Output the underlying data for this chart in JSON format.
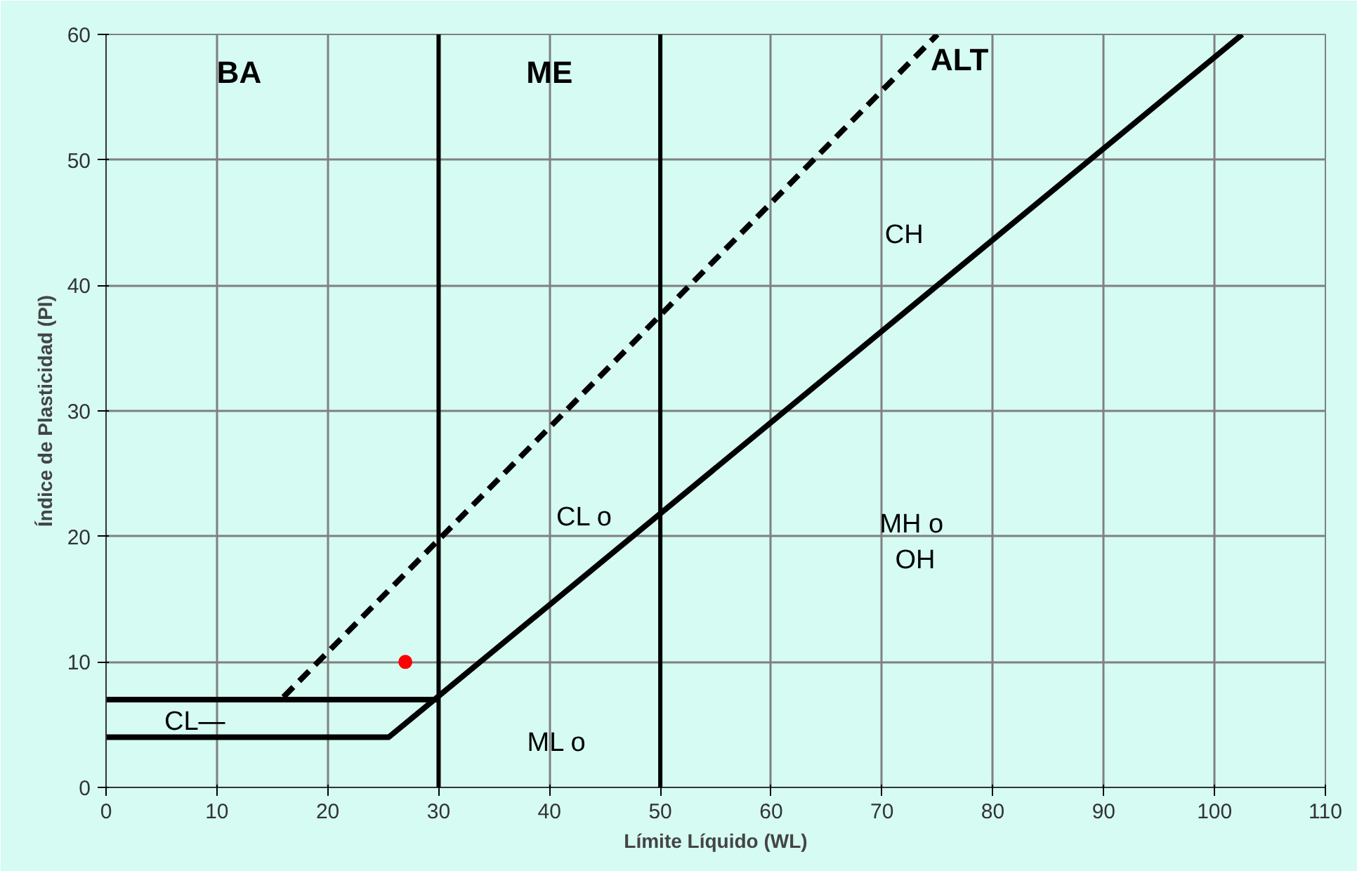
{
  "chart_data": {
    "type": "line",
    "xlabel": "Límite Líquido (WL)",
    "ylabel": "Índice de Plasticidad (PI)",
    "xlim": [
      0,
      110
    ],
    "ylim": [
      0,
      60
    ],
    "xticks": [
      0,
      10,
      20,
      30,
      40,
      50,
      60,
      70,
      80,
      90,
      100,
      110
    ],
    "yticks": [
      0,
      10,
      20,
      30,
      40,
      50,
      60
    ],
    "grid": true,
    "series": [
      {
        "x": [
          0,
          25.5,
          102.5
        ],
        "values": [
          4,
          4,
          60
        ],
        "color": "#000000",
        "line_style": "solid"
      },
      {
        "x": [
          0,
          30
        ],
        "values": [
          7,
          7
        ],
        "color": "#000000",
        "line_style": "solid"
      },
      {
        "x": [
          16,
          75
        ],
        "values": [
          7.2,
          60
        ],
        "color": "#000000",
        "line_style": "dashed"
      },
      {
        "type": "scatter",
        "x": [
          27
        ],
        "values": [
          10
        ],
        "color": "#ff0000",
        "marker": "circle"
      }
    ],
    "ref_lines": [
      {
        "axis": "x",
        "value": 30,
        "color": "#000000"
      },
      {
        "axis": "x",
        "value": 50,
        "color": "#000000"
      }
    ],
    "annotations": [
      "BA",
      "ME",
      "ALT",
      "CH",
      "CL  o",
      "ML  o",
      "MH  o\nOH",
      "CL—"
    ]
  }
}
